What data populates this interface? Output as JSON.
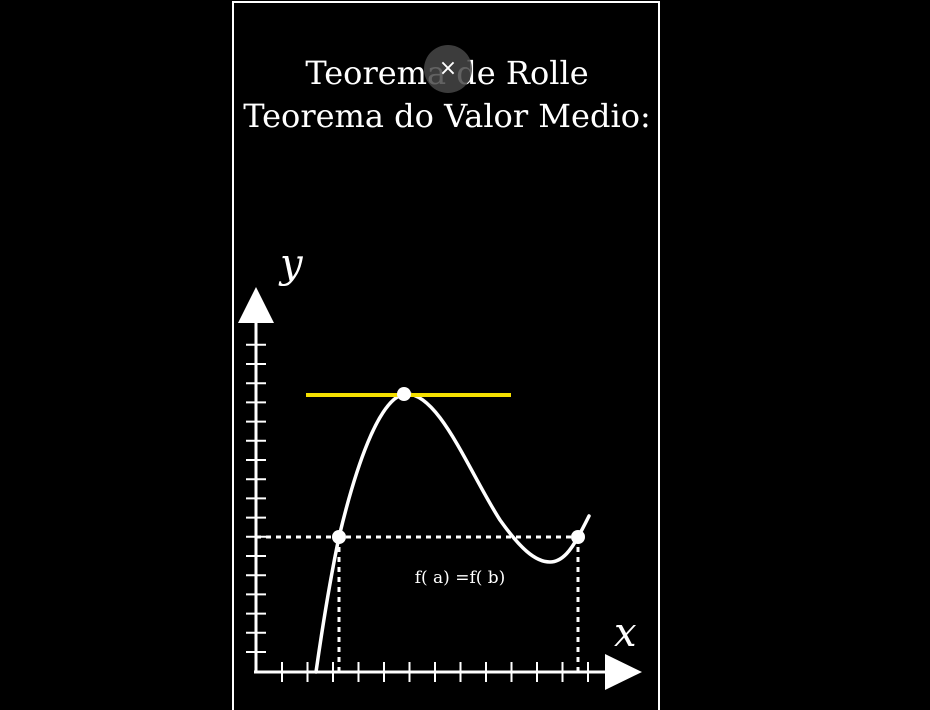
{
  "title": {
    "line1": "Teorema de Rolle",
    "line2": "Teorema do Valor Medio:"
  },
  "player": {
    "close_icon": "×"
  },
  "diagram": {
    "x_axis_label": "x",
    "y_axis_label": "y",
    "equation_label": "f( a) =f( b)",
    "tangent_color": "#f5e000",
    "curve_color": "#ffffff"
  }
}
